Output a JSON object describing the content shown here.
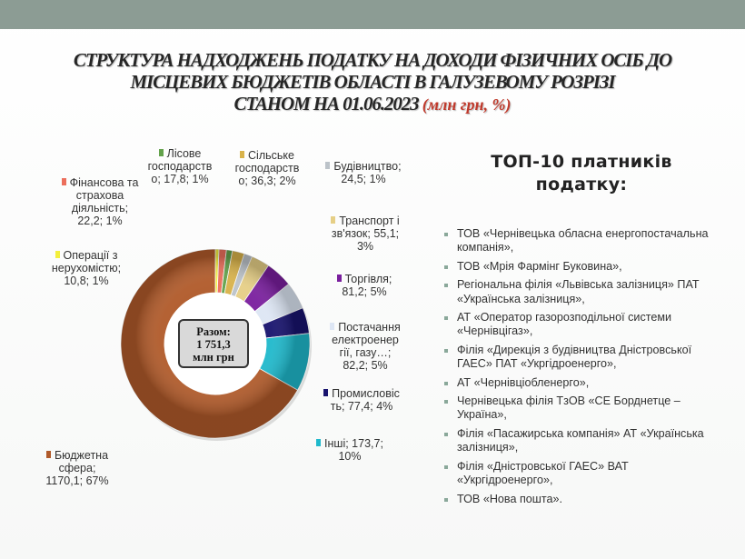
{
  "title": {
    "line1": "СТРУКТУРА НАДХОДЖЕНЬ ПОДАТКУ НА ДОХОДИ ФІЗИЧНИХ ОСІБ ДО",
    "line2": "МІСЦЕВИХ БЮДЖЕТІВ ОБЛАСТІ В ГАЛУЗЕВОМУ РОЗРІЗІ",
    "line3": "СТАНОМ НА 01.06.2023",
    "unit": "(млн грн, %)"
  },
  "total_box": {
    "label": "Разом:",
    "value": "1 751,3",
    "unit": "млн грн"
  },
  "chart_data": {
    "type": "pie",
    "style": "doughnut",
    "total": 1751.3,
    "slices": [
      {
        "name": "Операції з нерухомістю",
        "value": 10.8,
        "percent": 1,
        "color": "#f3ef3c",
        "label_lines": [
          "Операції з",
          "нерухомістю;",
          "10,8; 1%"
        ]
      },
      {
        "name": "Фінансова та страхова діяльність",
        "value": 22.2,
        "percent": 1,
        "color": "#ec6f5c",
        "label_lines": [
          "Фінансова та",
          "страхова",
          "діяльність;",
          "22,2; 1%"
        ]
      },
      {
        "name": "Лісове господарство",
        "value": 17.8,
        "percent": 1,
        "color": "#63a24b",
        "label_lines": [
          "Лісове",
          "господарств",
          "о; 17,8; 1%"
        ]
      },
      {
        "name": "Сільське господарство",
        "value": 36.3,
        "percent": 2,
        "color": "#d8b24a",
        "label_lines": [
          "Сільське",
          "господарств",
          "о; 36,3; 2%"
        ]
      },
      {
        "name": "Будівництво",
        "value": 24.5,
        "percent": 1,
        "color": "#bcc3c9",
        "label_lines": [
          "Будівництво;",
          "24,5; 1%"
        ]
      },
      {
        "name": "Транспорт і зв'язок",
        "value": 55.1,
        "percent": 3,
        "color": "#e6cf86",
        "label_lines": [
          "Транспорт і",
          "зв'язок; 55,1;",
          "3%"
        ]
      },
      {
        "name": "Торгівля",
        "value": 81.2,
        "percent": 5,
        "color": "#7a1f9e",
        "label_lines": [
          "Торгівля;",
          "81,2; 5%"
        ]
      },
      {
        "name": "Постачання електроенергії, газу…",
        "value": 82.2,
        "percent": 5,
        "color": "#dde6f4",
        "label_lines": [
          "Постачання",
          "електроенер",
          "гії, газу…;",
          "82,2; 5%"
        ]
      },
      {
        "name": "Промисловість",
        "value": 77.4,
        "percent": 4,
        "color": "#18136e",
        "label_lines": [
          "Промисловіс",
          "ть; 77,4; 4%"
        ]
      },
      {
        "name": "Інші",
        "value": 173.7,
        "percent": 10,
        "color": "#1fb9cc",
        "label_lines": [
          "Інші; 173,7;",
          "10%"
        ]
      },
      {
        "name": "Бюджетна сфера",
        "value": 1170.1,
        "percent": 67,
        "color": "#b05a2a",
        "label_lines": [
          "Бюджетна",
          "сфера;",
          "1170,1; 67%"
        ]
      }
    ]
  },
  "top10": {
    "title": "ТОП-10 платників податку:",
    "items": [
      "ТОВ «Чернівецька обласна енергопостачальна компанія»,",
      "ТОВ «Мрія Фармінг Буковина»,",
      "Регіональна філія «Львівська залізниця» ПАТ «Українська залізниця»,",
      "АТ «Оператор газорозподільної системи «Чернівцігаз»,",
      "Філія «Дирекція з будівництва Дністровської ГАЕС» ПАТ «Укргідроенерго»,",
      "АТ «Чернівціобленерго»,",
      "Чернівецька філія ТзОВ «СЕ Борднетце – Україна»,",
      "Філія «Пасажирська компанія» АТ «Українська залізниця»,",
      "Філія «Дністровської ГАЕС» ВАТ «Укргідроенерго»,",
      "ТОВ «Нова пошта»."
    ]
  }
}
